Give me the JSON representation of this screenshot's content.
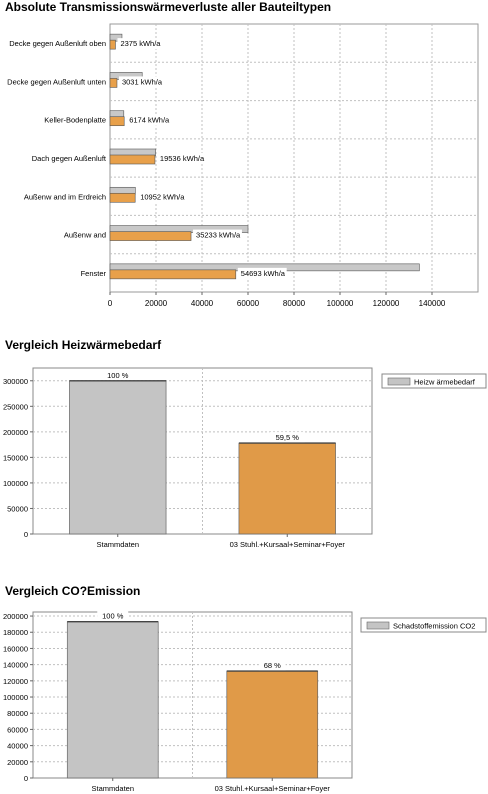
{
  "chart_data": [
    {
      "type": "bar",
      "orientation": "horizontal",
      "title": "Absolute Transmissionswärmeverluste aller Bauteiltypen",
      "categories": [
        "Decke gegen Außenluft oben",
        "Decke gegen Außenluft unten",
        "Keller-Bodenplatte",
        "Dach gegen Außenluft",
        "Außenw and im Erdreich",
        "Außenw and",
        "Fenster"
      ],
      "series": [
        {
          "values": [
            5200,
            14000,
            6000,
            19800,
            11000,
            60000,
            134500
          ],
          "color": "#c8c8c8"
        },
        {
          "values": [
            2375,
            3031,
            6174,
            19536,
            10952,
            35233,
            54693
          ],
          "color": "#e8a04a"
        }
      ],
      "value_labels": [
        "2375 kWh/a",
        "3031 kWh/a",
        "6174 kWh/a",
        "19536 kWh/a",
        "10952 kWh/a",
        "35233 kWh/a",
        "54693 kWh/a"
      ],
      "xlim": [
        0,
        160000
      ],
      "xticks": [
        0,
        20000,
        40000,
        60000,
        80000,
        100000,
        120000,
        140000
      ],
      "grid": true
    },
    {
      "type": "bar",
      "title": "Vergleich Heizwärmebedarf",
      "categories": [
        "Stammdaten",
        "03 Stuhl.+Kursaal+Seminar+Foyer"
      ],
      "values": [
        300000,
        178000
      ],
      "colors": [
        "#c4c4c4",
        "#e09a48"
      ],
      "value_labels": [
        "100 %",
        "59,5 %"
      ],
      "legend": "Heizw ärmebedarf",
      "legend_position": "right",
      "ylim": [
        0,
        325000
      ],
      "yticks": [
        0,
        50000,
        100000,
        150000,
        200000,
        250000,
        300000
      ],
      "grid": true
    },
    {
      "type": "bar",
      "title": "Vergleich CO?Emission",
      "categories": [
        "Stammdaten",
        "03 Stuhl.+Kursaal+Seminar+Foyer"
      ],
      "values": [
        193000,
        132000
      ],
      "colors": [
        "#c4c4c4",
        "#e09a48"
      ],
      "value_labels": [
        "100 %",
        "68 %"
      ],
      "legend": "Schadstoffemission CO2",
      "legend_position": "right",
      "ylim": [
        0,
        205000
      ],
      "yticks": [
        0,
        20000,
        40000,
        60000,
        80000,
        100000,
        120000,
        140000,
        160000,
        180000,
        200000
      ],
      "grid": true
    }
  ]
}
